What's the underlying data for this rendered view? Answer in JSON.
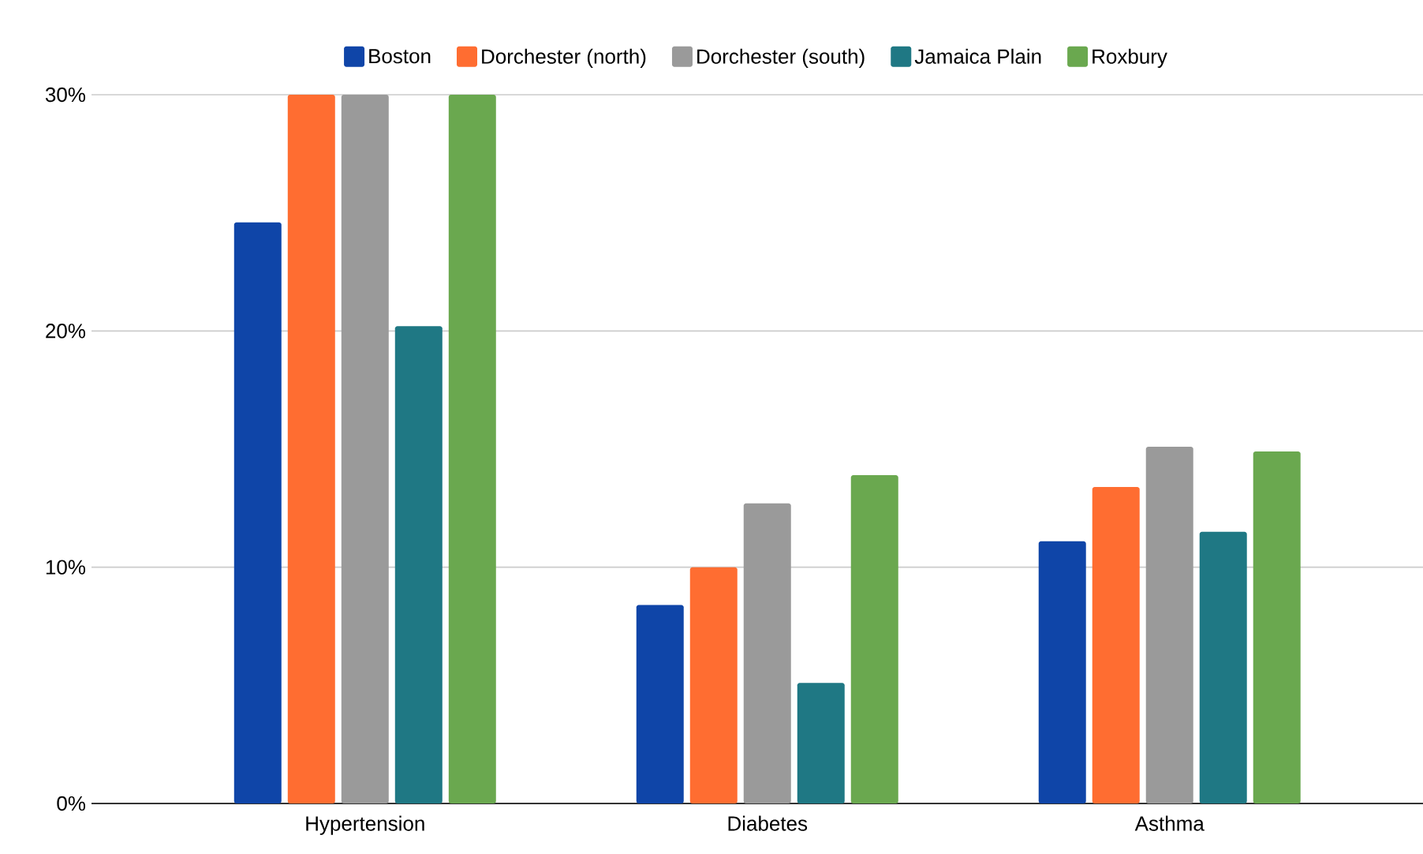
{
  "chart_data": {
    "type": "bar",
    "categories": [
      "Hypertension",
      "Diabetes",
      "Asthma"
    ],
    "series": [
      {
        "name": "Boston",
        "color": "#0f45a8",
        "values": [
          24.6,
          8.4,
          11.1
        ]
      },
      {
        "name": "Dorchester (north)",
        "color": "#ff6d31",
        "values": [
          30,
          10,
          13.4
        ]
      },
      {
        "name": "Dorchester (south)",
        "color": "#9a9a9a",
        "values": [
          30,
          12.7,
          15.1
        ]
      },
      {
        "name": "Jamaica Plain",
        "color": "#1f7884",
        "values": [
          20.2,
          5.1,
          11.5
        ]
      },
      {
        "name": "Roxbury",
        "color": "#6aa84f",
        "values": [
          30,
          13.9,
          14.9
        ]
      }
    ],
    "ylim": [
      0,
      30
    ],
    "yticks": [
      {
        "value": 0,
        "label": "0%"
      },
      {
        "value": 10,
        "label": "10%"
      },
      {
        "value": 20,
        "label": "20%"
      },
      {
        "value": 30,
        "label": "30%"
      }
    ],
    "grid": "y",
    "legend": "top"
  }
}
